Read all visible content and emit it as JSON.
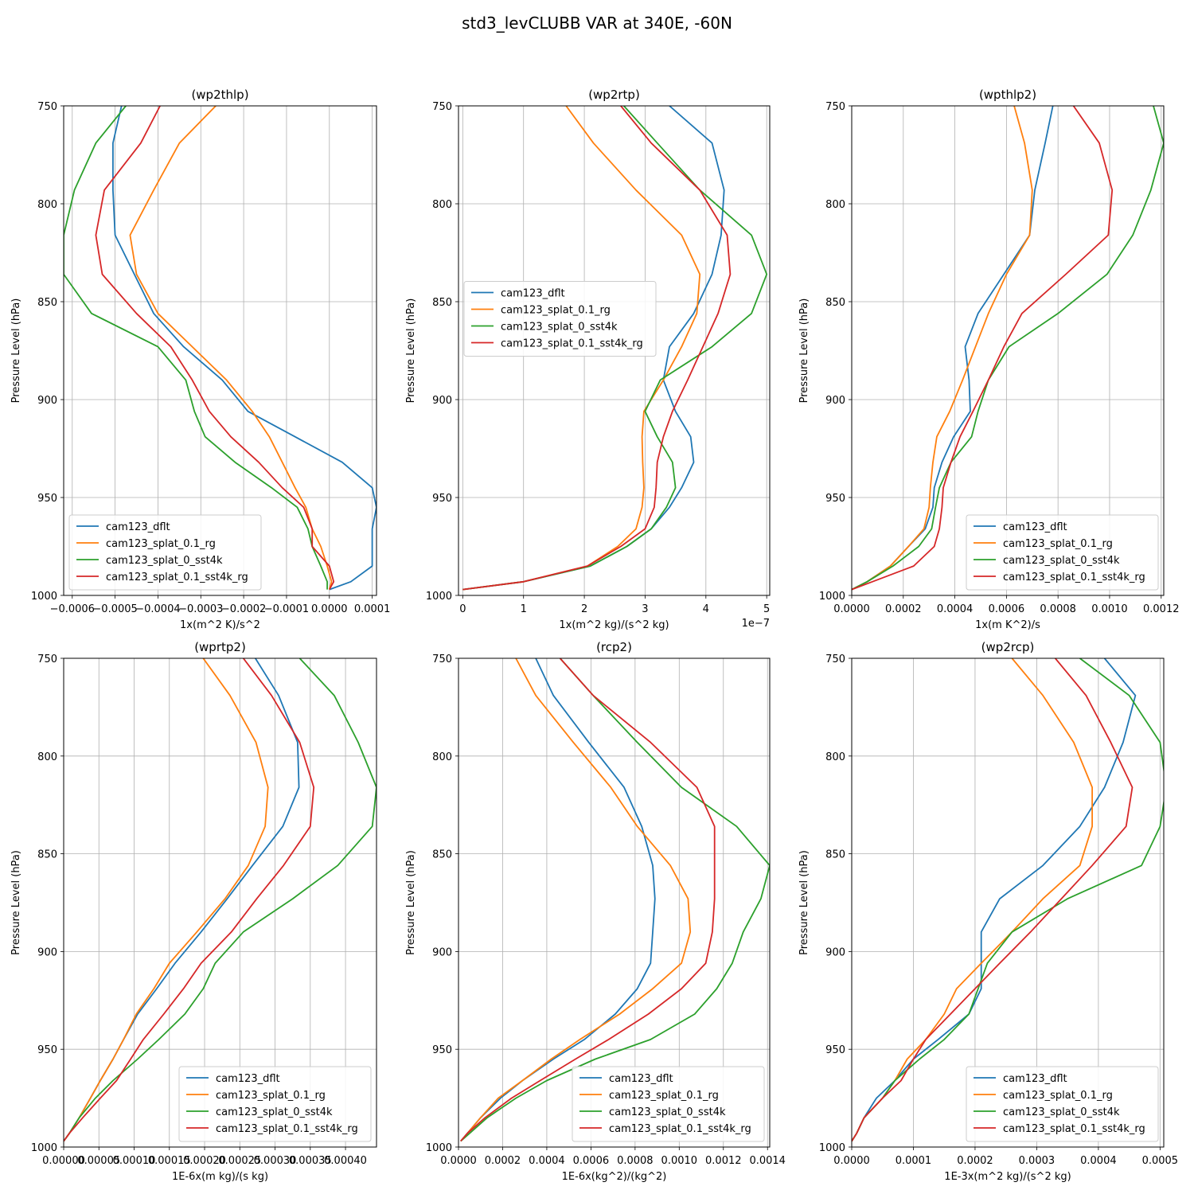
{
  "figure": {
    "title": "std3_levCLUBB VAR at 340E, -60N",
    "ylabel": "Pressure Level (hPa)",
    "colors": [
      "#1f77b4",
      "#ff7f0e",
      "#2ca02c",
      "#d62728"
    ],
    "series_names": [
      "cam123_dflt",
      "cam123_splat_0.1_rg",
      "cam123_splat_0_sst4k",
      "cam123_splat_0.1_sst4k_rg"
    ]
  },
  "chart_data": [
    {
      "type": "line",
      "title": "(wp2thlp)",
      "xlabel": "1x(m^2 K)/s^2",
      "ylabel": "Pressure Level (hPa)",
      "xlim": [
        -0.00062,
        0.00011
      ],
      "ylim": [
        1000,
        750
      ],
      "xticks": [
        -0.0006,
        -0.0005,
        -0.0004,
        -0.0003,
        -0.0002,
        -0.0001,
        0.0,
        0.0001
      ],
      "xticklabels": [
        "−0.0006",
        "−0.0005",
        "−0.0004",
        "−0.0003",
        "−0.0002",
        "−0.0001",
        "0.0000",
        "0.0001"
      ],
      "yticks": [
        750,
        800,
        850,
        900,
        950,
        1000
      ],
      "legend": "lower-left",
      "offset_label": "",
      "y": [
        750,
        769,
        793,
        816,
        836,
        856,
        873,
        890,
        906,
        919,
        932,
        945,
        955,
        966,
        975,
        985,
        993,
        997
      ],
      "series": [
        {
          "name": "cam123_dflt",
          "values": [
            -0.000485,
            -0.000505,
            -0.000505,
            -0.0005,
            -0.000455,
            -0.00041,
            -0.00034,
            -0.00025,
            -0.00019,
            -8e-05,
            3e-05,
            0.0001,
            0.00011,
            0.0001,
            0.0001,
            0.0001,
            5e-05,
            0.0
          ]
        },
        {
          "name": "cam123_splat_0.1_rg",
          "values": [
            -0.000265,
            -0.00035,
            -0.00041,
            -0.000465,
            -0.00045,
            -0.0004,
            -0.00032,
            -0.00024,
            -0.00018,
            -0.00014,
            -0.00011,
            -8e-05,
            -5.5e-05,
            -4e-05,
            -2e-05,
            -5e-06,
            5e-06,
            0.0
          ]
        },
        {
          "name": "cam123_splat_0_sst4k",
          "values": [
            -0.000475,
            -0.000545,
            -0.000595,
            -0.00062,
            -0.00062,
            -0.000555,
            -0.0004,
            -0.000335,
            -0.000315,
            -0.00029,
            -0.00022,
            -0.000135,
            -7.5e-05,
            -5e-05,
            -4e-05,
            -2e-05,
            -5e-06,
            -5e-06
          ]
        },
        {
          "name": "cam123_splat_0.1_sst4k_rg",
          "values": [
            -0.000395,
            -0.00044,
            -0.000525,
            -0.000545,
            -0.00053,
            -0.00045,
            -0.00037,
            -0.00032,
            -0.00028,
            -0.00023,
            -0.000165,
            -0.00011,
            -6e-05,
            -4e-05,
            -4e-05,
            0.0,
            1e-05,
            0.0
          ]
        }
      ]
    },
    {
      "type": "line",
      "title": "(wp2rtp)",
      "xlabel": "1x(m^2 kg)/(s^2 kg)",
      "ylabel": "Pressure Level (hPa)",
      "xlim": [
        -0.07,
        5.05
      ],
      "ylim": [
        1000,
        750
      ],
      "xticks": [
        0,
        1,
        2,
        3,
        4,
        5
      ],
      "xticklabels": [
        "0",
        "1",
        "2",
        "3",
        "4",
        "5"
      ],
      "yticks": [
        750,
        800,
        850,
        900,
        950,
        1000
      ],
      "legend": "center-left",
      "offset_label": "1e−7",
      "y": [
        750,
        769,
        793,
        816,
        836,
        856,
        873,
        890,
        906,
        919,
        932,
        945,
        955,
        966,
        975,
        985,
        993,
        997
      ],
      "series": [
        {
          "name": "cam123_dflt",
          "values": [
            3.4,
            4.1,
            4.3,
            4.25,
            4.1,
            3.8,
            3.4,
            3.3,
            3.5,
            3.75,
            3.8,
            3.6,
            3.4,
            3.1,
            2.7,
            2.1,
            1.0,
            0.0
          ]
        },
        {
          "name": "cam123_splat_0.1_rg",
          "values": [
            1.7,
            2.15,
            2.85,
            3.6,
            3.9,
            3.85,
            3.6,
            3.3,
            2.98,
            2.95,
            2.96,
            2.98,
            2.95,
            2.85,
            2.55,
            2.05,
            1.0,
            0.0
          ]
        },
        {
          "name": "cam123_splat_0_sst4k",
          "values": [
            2.65,
            3.2,
            3.9,
            4.75,
            5.0,
            4.75,
            4.1,
            3.25,
            3.0,
            3.2,
            3.45,
            3.5,
            3.35,
            3.1,
            2.7,
            2.1,
            1.0,
            0.0
          ]
        },
        {
          "name": "cam123_splat_0.1_sst4k_rg",
          "values": [
            2.6,
            3.1,
            3.9,
            4.35,
            4.4,
            4.2,
            3.95,
            3.7,
            3.45,
            3.3,
            3.2,
            3.18,
            3.15,
            3.0,
            2.6,
            2.05,
            1.0,
            0.0
          ]
        }
      ]
    },
    {
      "type": "line",
      "title": "(wpthlp2)",
      "xlabel": "1x(m K^2)/s",
      "ylabel": "Pressure Level (hPa)",
      "xlim": [
        0.0,
        0.00121
      ],
      "ylim": [
        1000,
        750
      ],
      "xticks": [
        0.0,
        0.0002,
        0.0004,
        0.0006,
        0.0008,
        0.001,
        0.0012
      ],
      "xticklabels": [
        "0.0000",
        "0.0002",
        "0.0004",
        "0.0006",
        "0.0008",
        "0.0010",
        "0.0012"
      ],
      "yticks": [
        750,
        800,
        850,
        900,
        950,
        1000
      ],
      "legend": "lower-right",
      "offset_label": "",
      "y": [
        750,
        769,
        793,
        816,
        836,
        856,
        873,
        890,
        906,
        919,
        932,
        945,
        955,
        966,
        975,
        985,
        993,
        997
      ],
      "series": [
        {
          "name": "cam123_dflt",
          "values": [
            0.00078,
            0.00075,
            0.00071,
            0.00069,
            0.00059,
            0.00049,
            0.00044,
            0.000455,
            0.00046,
            0.000395,
            0.00035,
            0.00032,
            0.000315,
            0.000285,
            0.00022,
            0.00015,
            6e-05,
            0.0
          ]
        },
        {
          "name": "cam123_splat_0.1_rg",
          "values": [
            0.00063,
            0.00067,
            0.0007,
            0.00069,
            0.0006,
            0.00053,
            0.00048,
            0.00043,
            0.00038,
            0.00033,
            0.000315,
            0.000305,
            0.0003,
            0.00028,
            0.00022,
            0.00015,
            6e-05,
            0.0
          ]
        },
        {
          "name": "cam123_splat_0_sst4k",
          "values": [
            0.00117,
            0.00121,
            0.00116,
            0.00109,
            0.00099,
            0.0008,
            0.00061,
            0.00053,
            0.00049,
            0.000465,
            0.000385,
            0.00034,
            0.000325,
            0.00031,
            0.00026,
            0.00016,
            6e-05,
            0.0
          ]
        },
        {
          "name": "cam123_splat_0.1_sst4k_rg",
          "values": [
            0.00086,
            0.00096,
            0.00101,
            0.000995,
            0.00083,
            0.00066,
            0.00059,
            0.00053,
            0.00047,
            0.00042,
            0.000385,
            0.000355,
            0.00035,
            0.00034,
            0.00032,
            0.00024,
            8e-05,
            0.0
          ]
        }
      ]
    },
    {
      "type": "line",
      "title": "(wprtp2)",
      "xlabel": "1E-6x(m kg)/(s kg)",
      "ylabel": "Pressure Level (hPa)",
      "xlim": [
        0.0,
        0.000444
      ],
      "ylim": [
        1000,
        750
      ],
      "xticks": [
        0.0,
        5e-05,
        0.0001,
        0.00015,
        0.0002,
        0.00025,
        0.0003,
        0.00035,
        0.0004
      ],
      "xticklabels": [
        "0.00000",
        "0.00005",
        "0.00010",
        "0.00015",
        "0.00020",
        "0.00025",
        "0.00030",
        "0.00035",
        "0.00040"
      ],
      "yticks": [
        750,
        800,
        850,
        900,
        950,
        1000
      ],
      "legend": "lower-right",
      "offset_label": "",
      "y": [
        750,
        769,
        793,
        816,
        836,
        856,
        873,
        890,
        906,
        919,
        932,
        945,
        955,
        966,
        975,
        985,
        993,
        997
      ],
      "series": [
        {
          "name": "cam123_dflt",
          "values": [
            0.000272,
            0.000305,
            0.000332,
            0.000334,
            0.000311,
            0.000268,
            0.000232,
            0.000195,
            0.000158,
            0.000132,
            0.000105,
            8.5e-05,
            7e-05,
            5.2e-05,
            3.8e-05,
            2.2e-05,
            8e-06,
            0.0
          ]
        },
        {
          "name": "cam123_splat_0.1_rg",
          "values": [
            0.000198,
            0.000236,
            0.000273,
            0.00029,
            0.000286,
            0.000262,
            0.000229,
            0.000189,
            0.00015,
            0.000128,
            0.000103,
            8.5e-05,
            7e-05,
            5.2e-05,
            3.8e-05,
            2.2e-05,
            8e-06,
            0.0
          ]
        },
        {
          "name": "cam123_splat_0_sst4k",
          "values": [
            0.000335,
            0.000384,
            0.000418,
            0.000444,
            0.000438,
            0.000389,
            0.000325,
            0.000255,
            0.000215,
            0.000198,
            0.000172,
            0.000135,
            0.000105,
            7e-05,
            4.5e-05,
            2.2e-05,
            8e-06,
            0.0
          ]
        },
        {
          "name": "cam123_splat_0.1_sst4k_rg",
          "values": [
            0.000255,
            0.000295,
            0.000335,
            0.000355,
            0.00035,
            0.000312,
            0.000274,
            0.000238,
            0.000195,
            0.00017,
            0.000142,
            0.000113,
            9.5e-05,
            7.5e-05,
            5.2e-05,
            2.7e-05,
            8e-06,
            0.0
          ]
        }
      ]
    },
    {
      "type": "line",
      "title": "(rcp2)",
      "xlabel": "1E-6x(kg^2)/(kg^2)",
      "ylabel": "Pressure Level (hPa)",
      "xlim": [
        0.0,
        0.00141
      ],
      "ylim": [
        1000,
        750
      ],
      "xticks": [
        0.0,
        0.0002,
        0.0004,
        0.0006,
        0.0008,
        0.001,
        0.0012,
        0.0014
      ],
      "xticklabels": [
        "0.0000",
        "0.0002",
        "0.0004",
        "0.0006",
        "0.0008",
        "0.0010",
        "0.0012",
        "0.0014"
      ],
      "yticks": [
        750,
        800,
        850,
        900,
        950,
        1000
      ],
      "legend": "lower-right",
      "offset_label": "",
      "y": [
        750,
        769,
        793,
        816,
        836,
        856,
        873,
        890,
        906,
        919,
        932,
        945,
        955,
        966,
        975,
        985,
        993,
        997
      ],
      "series": [
        {
          "name": "cam123_dflt",
          "values": [
            0.00035,
            0.00043,
            0.00059,
            0.00075,
            0.00083,
            0.00088,
            0.00089,
            0.00088,
            0.00087,
            0.00081,
            0.00071,
            0.00057,
            0.00043,
            0.00029,
            0.00019,
            0.0001,
            4e-05,
            1e-05
          ]
        },
        {
          "name": "cam123_splat_0.1_rg",
          "values": [
            0.00026,
            0.00035,
            0.00052,
            0.00069,
            0.00081,
            0.00096,
            0.00104,
            0.00105,
            0.00101,
            0.00088,
            0.00073,
            0.00055,
            0.00042,
            0.00029,
            0.00018,
            0.0001,
            4e-05,
            1e-05
          ]
        },
        {
          "name": "cam123_splat_0_sst4k",
          "values": [
            0.00046,
            0.00061,
            0.00081,
            0.00101,
            0.00126,
            0.00141,
            0.00137,
            0.00129,
            0.00124,
            0.00117,
            0.00107,
            0.00087,
            0.00062,
            0.0004,
            0.00026,
            0.00013,
            5e-05,
            1e-05
          ]
        },
        {
          "name": "cam123_splat_0.1_sst4k_rg",
          "values": [
            0.00046,
            0.00061,
            0.00087,
            0.00108,
            0.00116,
            0.00116,
            0.00116,
            0.00115,
            0.00112,
            0.00101,
            0.00086,
            0.00068,
            0.00053,
            0.00037,
            0.00024,
            0.00012,
            4e-05,
            1e-05
          ]
        }
      ]
    },
    {
      "type": "line",
      "title": "(wp2rcp)",
      "xlabel": "1E-3x(m^2 kg)/(s^2 kg)",
      "ylabel": "Pressure Level (hPa)",
      "xlim": [
        0.0,
        0.000506
      ],
      "ylim": [
        1000,
        750
      ],
      "xticks": [
        0.0,
        0.0001,
        0.0002,
        0.0003,
        0.0004,
        0.0005
      ],
      "xticklabels": [
        "0.0000",
        "0.0001",
        "0.0002",
        "0.0003",
        "0.0004",
        "0.0005"
      ],
      "yticks": [
        750,
        800,
        850,
        900,
        950,
        1000
      ],
      "legend": "lower-right",
      "offset_label": "",
      "y": [
        750,
        769,
        793,
        816,
        836,
        856,
        873,
        890,
        906,
        919,
        932,
        945,
        955,
        966,
        975,
        985,
        993,
        997
      ],
      "series": [
        {
          "name": "cam123_dflt",
          "values": [
            0.00041,
            0.00046,
            0.00044,
            0.00041,
            0.00037,
            0.00031,
            0.00024,
            0.00021,
            0.00021,
            0.00021,
            0.00019,
            0.00014,
            0.0001,
            7e-05,
            4e-05,
            2e-05,
            8e-06,
            0.0
          ]
        },
        {
          "name": "cam123_splat_0.1_rg",
          "values": [
            0.00026,
            0.00031,
            0.00036,
            0.00039,
            0.00039,
            0.00037,
            0.00031,
            0.00026,
            0.00021,
            0.00017,
            0.00015,
            0.00012,
            9e-05,
            7e-05,
            5e-05,
            2e-05,
            8e-06,
            0.0
          ]
        },
        {
          "name": "cam123_splat_0_sst4k",
          "values": [
            0.00037,
            0.00045,
            0.0005,
            0.00051,
            0.0005,
            0.00047,
            0.00035,
            0.00026,
            0.00022,
            0.000205,
            0.00019,
            0.00015,
            0.00011,
            7e-05,
            5e-05,
            2e-05,
            8e-06,
            0.0
          ]
        },
        {
          "name": "cam123_splat_0.1_sst4k_rg",
          "values": [
            0.00033,
            0.00038,
            0.00042,
            0.000455,
            0.000445,
            0.00039,
            0.00034,
            0.00029,
            0.00024,
            0.0002,
            0.00016,
            0.00012,
            0.0001,
            8e-05,
            5e-05,
            2e-05,
            8e-06,
            0.0
          ]
        }
      ]
    }
  ]
}
